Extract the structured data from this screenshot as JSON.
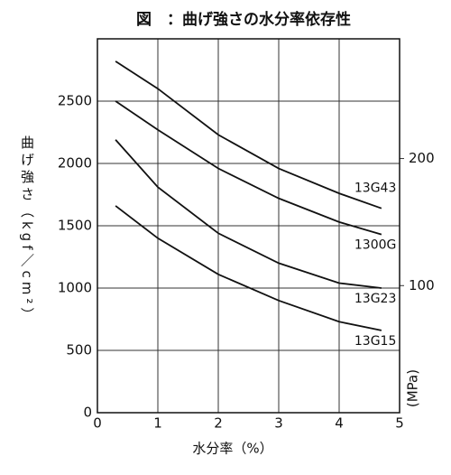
{
  "chart_data": {
    "type": "line",
    "title": "図　：曲げ強さの水分率依存性",
    "x_label": "水分率（%）",
    "y_label": "曲げ強さ（kgf／cm²）",
    "y2_label": "(MPa)",
    "x": [
      0.3,
      1,
      2,
      3,
      4,
      4.7
    ],
    "series": [
      {
        "name": "13G43",
        "color": "#111111",
        "values": [
          2820,
          2600,
          2230,
          1960,
          1760,
          1640
        ]
      },
      {
        "name": "1300G",
        "color": "#111111",
        "values": [
          2500,
          2270,
          1960,
          1720,
          1530,
          1430
        ]
      },
      {
        "name": "13G23",
        "color": "#111111",
        "values": [
          2190,
          1810,
          1440,
          1200,
          1040,
          1000
        ]
      },
      {
        "name": "13G15",
        "color": "#111111",
        "values": [
          1660,
          1400,
          1110,
          900,
          730,
          660
        ]
      }
    ],
    "xlim": [
      0,
      5
    ],
    "xticks": [
      0,
      1,
      2,
      3,
      4,
      5
    ],
    "ylim": [
      0,
      3000
    ],
    "yticks": [
      0,
      500,
      1000,
      1500,
      2000,
      2500
    ],
    "y2lim": [
      0,
      294.2
    ],
    "y2ticks": [
      100,
      200
    ],
    "grid": true
  }
}
